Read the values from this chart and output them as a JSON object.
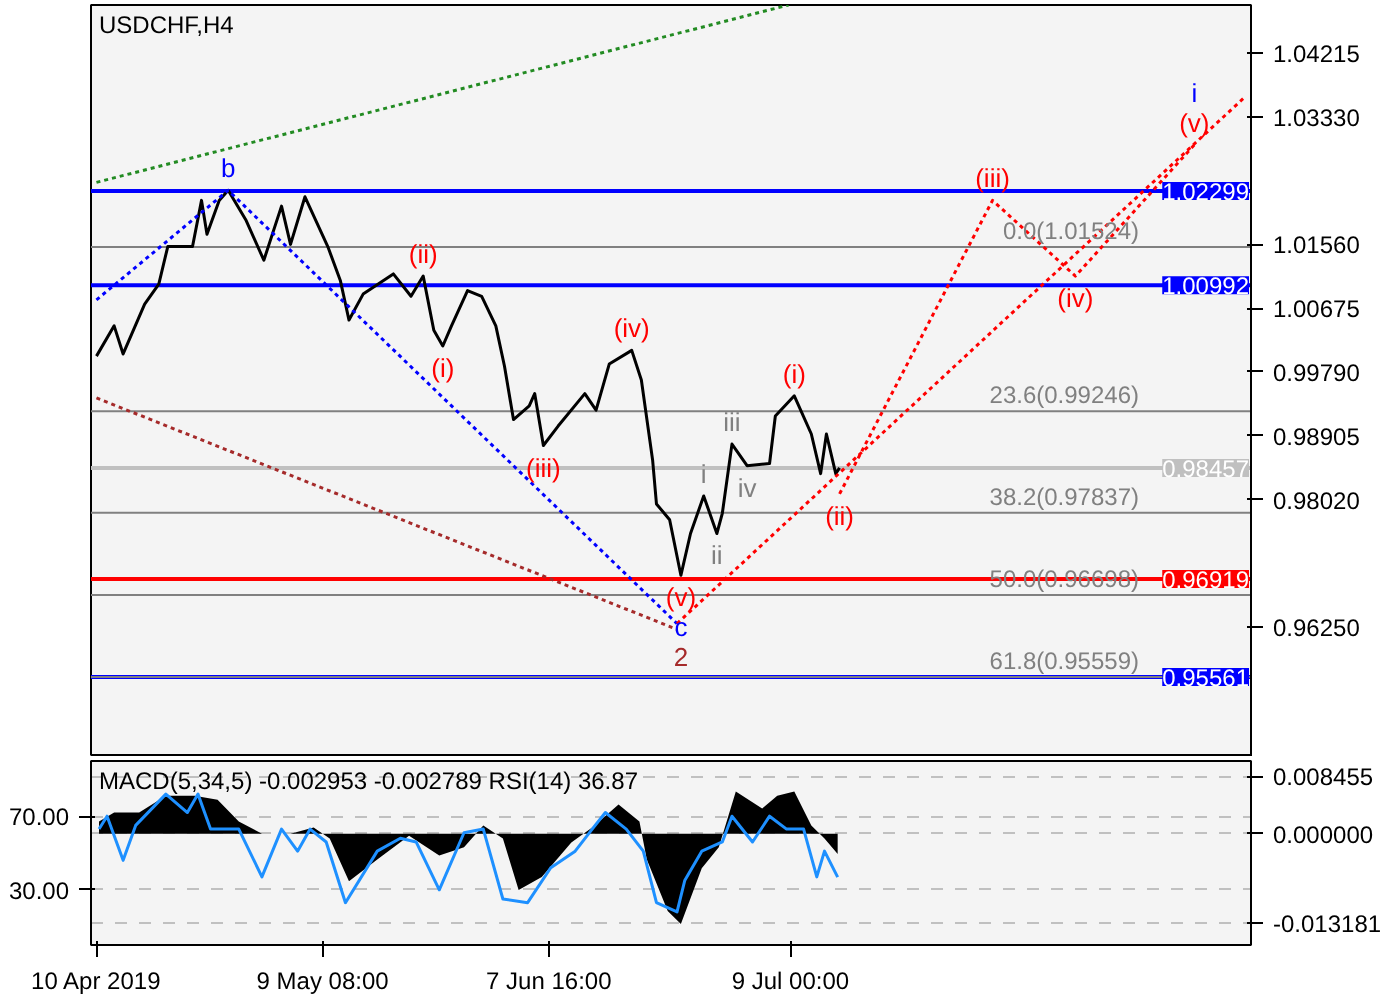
{
  "chart_data": [
    {
      "type": "line",
      "title": "USDCHF,H4",
      "xlim": [
        "2019-04-09T07:00",
        "2019-09-06T17:30"
      ],
      "ylim": [
        0.9445,
        1.0488
      ],
      "yticks": [
        1.04215,
        {
          "value": 1.0333,
          "label": "1.03330"
        },
        {
          "value": 1.0156,
          "label": "1.01560"
        },
        1.00675,
        {
          "value": 0.9979,
          "label": "0.99790"
        },
        0.98905,
        {
          "value": 0.9802,
          "label": "0.98020"
        },
        {
          "value": 0.9625,
          "label": "0.96250"
        }
      ],
      "tick_labels": "y",
      "grid": false,
      "series": [
        {
          "color": "#000000",
          "line_style": "solid",
          "x": [
            "2019-04-10T00:00",
            "2019-04-12T07:00",
            "2019-04-13T11:00",
            "2019-04-16T06:00",
            "2019-04-18T02:00",
            "2019-04-19T06:00",
            "2019-04-22T11:00",
            "2019-04-23T15:00",
            "2019-04-24T08:00",
            "2019-04-25T22:00",
            "2019-04-27T02:00",
            "2019-04-29T10:00",
            "2019-05-01T17:00",
            "2019-05-04T00:00",
            "2019-05-05T04:00",
            "2019-05-07T01:00",
            "2019-05-10T00:00",
            "2019-05-11T15:00",
            "2019-05-12T18:00",
            "2019-05-14T14:00",
            "2019-05-18T12:00",
            "2019-05-20T19:00",
            "2019-05-22T09:00",
            "2019-05-23T18:00",
            "2019-05-24T22:00",
            "2019-05-26T01:00",
            "2019-05-28T03:00",
            "2019-05-29T23:00",
            "2019-05-31T19:00",
            "2019-06-01T22:00",
            "2019-06-03T02:00",
            "2019-06-05T03:00",
            "2019-06-05T20:00",
            "2019-06-06T23:00",
            "2019-06-08T21:00",
            "2019-06-12T08:00",
            "2019-06-13T19:00",
            "2019-06-15T12:00",
            "2019-06-18T10:00",
            "2019-06-19T16:00",
            "2019-06-21T03:00",
            "2019-06-21T15:00",
            "2019-06-23T08:00",
            "2019-06-24T19:00",
            "2019-06-26T01:00",
            "2019-06-27T18:00",
            "2019-06-29T11:00",
            "2019-06-30T04:00",
            "2019-07-01T10:00",
            "2019-07-03T09:00",
            "2019-07-06T07:00",
            "2019-07-07T01:00",
            "2019-07-09T12:00",
            "2019-07-11T17:00",
            "2019-07-12T22:00",
            "2019-07-13T16:00",
            "2019-07-14T21:00",
            "2019-07-15T09:00"
          ],
          "values": [
            1.0001,
            1.0043,
            1.0004,
            1.0073,
            1.0101,
            1.0153,
            1.0153,
            1.0217,
            1.017,
            1.0217,
            1.0231,
            1.0189,
            1.0134,
            1.0209,
            1.0156,
            1.0222,
            1.0153,
            1.0106,
            1.0051,
            1.0087,
            1.0115,
            1.0084,
            1.0112,
            1.0037,
            1.0015,
            1.0043,
            1.0092,
            1.0084,
            1.0043,
            0.9987,
            0.9913,
            0.9932,
            0.9949,
            0.9877,
            0.9904,
            0.9949,
            0.9926,
            0.999,
            1.0009,
            0.9968,
            0.9857,
            0.9796,
            0.9774,
            0.9697,
            0.9755,
            0.9807,
            0.9755,
            0.9783,
            0.9879,
            0.9849,
            0.9852,
            0.9918,
            0.9946,
            0.9893,
            0.9838,
            0.9893,
            0.9838,
            0.9846
          ]
        },
        {
          "color": "#228b22",
          "line_style": "dotted",
          "x": [
            "2019-04-10T00:00",
            "2019-07-08T18:00"
          ],
          "values": [
            1.0242,
            1.0488
          ]
        },
        {
          "color": "#0000ff",
          "line_style": "dotted",
          "x": [
            "2019-04-10T00:00",
            "2019-04-27T02:00",
            "2019-06-24T07:00"
          ],
          "values": [
            1.0079,
            1.0231,
            0.963
          ]
        },
        {
          "color": "#a52a2a",
          "line_style": "dotted",
          "x": [
            "2019-04-10T00:00",
            "2019-06-24T07:00"
          ],
          "values": [
            0.9943,
            0.9622
          ]
        },
        {
          "color": "#ff0000",
          "line_style": "dotted",
          "x": [
            "2019-06-24T07:00",
            "2019-09-06T00:00"
          ],
          "values": [
            0.963,
            1.0361
          ]
        },
        {
          "color": "#ff0000",
          "line_style": "dotted",
          "x": [
            "2019-07-15T09:00",
            "2019-08-04T05:00",
            "2019-08-14T23:00",
            "2019-08-30T09:00"
          ],
          "values": [
            0.981,
            1.0217,
            1.0112,
            1.0294
          ]
        }
      ],
      "ref_lines": [
        {
          "axis": "y",
          "value": 1.02299,
          "label": "1.02299",
          "color": "#0000ff"
        },
        {
          "axis": "y",
          "value": 1.00992,
          "label": "1.00992",
          "color": "#0000ff"
        },
        {
          "axis": "y",
          "value": 0.98457,
          "label": "0.98457",
          "color": "#c0c0c0"
        },
        {
          "axis": "y",
          "value": 0.96919,
          "label": "0.96919",
          "color": "#ff0000"
        },
        {
          "axis": "y",
          "value": 0.95561,
          "label": "0.95561",
          "color": "#0000ff"
        },
        {
          "axis": "y",
          "value": 1.01524,
          "label": "0.0(1.01524)",
          "color": "#808080"
        },
        {
          "axis": "y",
          "value": 0.99246,
          "label": "23.6(0.99246)",
          "color": "#808080"
        },
        {
          "axis": "y",
          "value": 0.97837,
          "label": "38.2(0.97837)",
          "color": "#808080"
        },
        {
          "axis": "y",
          "value": 0.96698,
          "label": "50.0(0.96698)",
          "color": "#808080"
        },
        {
          "axis": "y",
          "value": 0.95559,
          "label": "61.8(0.95559)",
          "color": "#808080"
        }
      ],
      "annotations": [
        {
          "text": "b",
          "x": "2019-04-27T02:00",
          "y": 1.0231
        },
        {
          "text": "(i)",
          "x": "2019-05-24T22:00",
          "y": 1.0015
        },
        {
          "text": "(ii)",
          "x": "2019-05-22T09:00",
          "y": 1.0112
        },
        {
          "text": "(iii)",
          "x": "2019-06-06T23:00",
          "y": 0.9877
        },
        {
          "text": "(iv)",
          "x": "2019-06-18T10:00",
          "y": 1.0009
        },
        {
          "text": "(v)",
          "x": "2019-06-24T19:00",
          "y": 0.9697
        },
        {
          "text": "c",
          "x": "2019-06-24T19:00",
          "y": 0.9697
        },
        {
          "text": "2",
          "x": "2019-06-24T19:00",
          "y": 0.9697
        },
        {
          "text": "i",
          "x": "2019-06-27T18:00",
          "y": 0.9807
        },
        {
          "text": "ii",
          "x": "2019-06-29T11:00",
          "y": 0.9755
        },
        {
          "text": "iii",
          "x": "2019-07-01T10:00",
          "y": 0.9879
        },
        {
          "text": "iv",
          "x": "2019-07-03T09:00",
          "y": 0.9849
        },
        {
          "text": "(i)",
          "x": "2019-07-09T12:00",
          "y": 0.9946
        },
        {
          "text": "(ii)",
          "x": "2019-07-15T09:00",
          "y": 0.981
        },
        {
          "text": "(iii)",
          "x": "2019-08-04T05:00",
          "y": 1.0217
        },
        {
          "text": "(iv)",
          "x": "2019-08-14T23:00",
          "y": 1.0112
        },
        {
          "text": "(v)",
          "x": "2019-08-30T09:00",
          "y": 1.0294
        },
        {
          "text": "i",
          "x": "2019-08-30T09:00",
          "y": 1.0294
        }
      ]
    },
    {
      "type": "area",
      "title": "MACD(5,34,5) -0.002953 -0.002789 RSI(14) 36.87",
      "xlim": [
        "2019-04-09T07:00",
        "2019-09-06T17:30"
      ],
      "ylim": [
        -0.0164,
        0.0107
      ],
      "y2lim": [
        0,
        100
      ],
      "xticks": [
        {
          "value": "2019-04-10T00:00",
          "label": "10 Apr 2019"
        },
        {
          "value": "2019-05-09T08:00",
          "label": "9 May 08:00"
        },
        {
          "value": "2019-06-07T16:00",
          "label": "7 Jun 16:00"
        },
        {
          "value": "2019-07-09T00:00",
          "label": "9 Jul 00:00"
        }
      ],
      "yticks": [
        0.008455,
        {
          "value": 0,
          "label": "0.000000"
        },
        -0.013181
      ],
      "y2ticks": [
        {
          "value": 70,
          "label": "70.00"
        },
        {
          "value": 30,
          "label": "30.00"
        }
      ],
      "grid": "y",
      "series": [
        {
          "type": "area",
          "color": "#000000",
          "x": [
            "2019-04-10T08:00",
            "2019-04-12T07:00",
            "2019-04-15T13:00",
            "2019-04-19T00:00",
            "2019-04-22T17:00",
            "2019-04-25T17:00",
            "2019-04-28T11:00",
            "2019-05-01T11:00",
            "2019-05-05T04:00",
            "2019-05-08T04:00",
            "2019-05-10T06:00",
            "2019-05-12T18:00",
            "2019-05-16T10:00",
            "2019-05-20T13:00",
            "2019-05-24T11:00",
            "2019-05-27T16:00",
            "2019-05-30T04:00",
            "2019-06-01T17:00",
            "2019-06-03T18:00",
            "2019-06-06T18:00",
            "2019-06-10T14:00",
            "2019-06-13T07:00",
            "2019-06-16T17:00",
            "2019-06-19T10:00",
            "2019-06-20T09:00",
            "2019-06-23T02:00",
            "2019-06-24T19:00",
            "2019-06-27T12:00",
            "2019-06-29T17:00",
            "2019-07-01T22:00",
            "2019-07-05T08:00",
            "2019-07-07T07:00",
            "2019-07-09T12:00",
            "2019-07-11T17:00",
            "2019-07-13T10:00",
            "2019-07-15T03:00"
          ],
          "values": [
            0.0018,
            0.0031,
            0.0031,
            0.0056,
            0.0056,
            0.005,
            0.0018,
            0,
            0,
            0.0009,
            -0.0007,
            -0.007,
            -0.0038,
            -0.0003,
            -0.0032,
            -0.002,
            0.0012,
            -0.0007,
            -0.0083,
            -0.0064,
            -0.0013,
            0.0009,
            0.0043,
            0.0018,
            -0.0038,
            -0.0114,
            -0.0133,
            -0.0051,
            -0.002,
            0.0062,
            0.0037,
            0.0056,
            0.0062,
            0.0012,
            -0.0007,
            -0.003
          ]
        },
        {
          "type": "line",
          "axis": "y2",
          "color": "#1e90ff",
          "x": [
            "2019-04-10T08:00",
            "2019-04-11T09:00",
            "2019-04-13T11:00",
            "2019-04-15T02:00",
            "2019-04-19T00:00",
            "2019-04-21T19:00",
            "2019-04-23T04:00",
            "2019-04-24T19:00",
            "2019-04-28T11:00",
            "2019-05-01T11:00",
            "2019-05-04T00:00",
            "2019-05-06T02:00",
            "2019-05-07T17:00",
            "2019-05-09T19:00",
            "2019-05-12T07:00",
            "2019-05-16T10:00",
            "2019-05-19T10:00",
            "2019-05-21T11:00",
            "2019-05-24T11:00",
            "2019-05-27T16:00",
            "2019-05-30T04:00",
            "2019-06-01T17:00",
            "2019-06-04T22:00",
            "2019-06-07T22:00",
            "2019-06-11T02:00",
            "2019-06-13T07:00",
            "2019-06-15T00:00",
            "2019-06-17T17:00",
            "2019-06-19T22:00",
            "2019-06-21T15:00",
            "2019-06-24T07:00",
            "2019-06-25T07:00",
            "2019-06-27T12:00",
            "2019-06-30T04:00",
            "2019-07-01T10:00",
            "2019-07-04T02:00",
            "2019-07-06T07:00",
            "2019-07-08T12:00",
            "2019-07-10T17:00",
            "2019-07-12T10:00",
            "2019-07-13T10:00",
            "2019-07-15T03:00"
          ],
          "values": [
            63,
            70,
            46,
            65,
            82,
            72,
            82,
            63,
            63,
            37,
            63,
            51,
            63,
            56,
            23,
            51,
            58,
            56,
            30,
            61,
            63,
            25,
            23,
            42,
            51,
            63,
            72,
            63,
            51,
            23,
            18,
            35,
            51,
            56,
            70,
            56,
            70,
            63,
            63,
            37,
            51,
            36.87
          ]
        }
      ]
    }
  ]
}
